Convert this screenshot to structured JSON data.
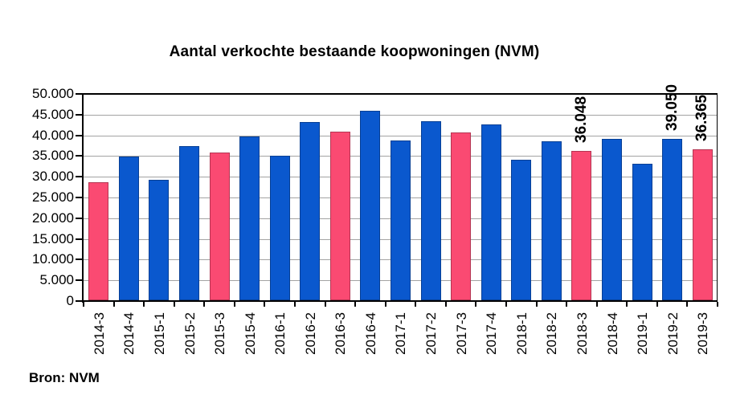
{
  "chart_data": {
    "type": "bar",
    "title": "Aantal verkochte bestaande koopwoningen (NVM)",
    "categories": [
      "2014-3",
      "2014-4",
      "2015-1",
      "2015-2",
      "2015-3",
      "2015-4",
      "2016-1",
      "2016-2",
      "2016-3",
      "2016-4",
      "2017-1",
      "2017-2",
      "2017-3",
      "2017-4",
      "2018-1",
      "2018-2",
      "2018-3",
      "2018-4",
      "2019-1",
      "2019-2",
      "2019-3"
    ],
    "values": [
      28400,
      34700,
      29000,
      37300,
      35600,
      39600,
      34900,
      43000,
      40700,
      45800,
      38500,
      43200,
      40600,
      42500,
      34000,
      38400,
      36048,
      39000,
      32900,
      39050,
      36365
    ],
    "point_labels": [
      "",
      "",
      "",
      "",
      "",
      "",
      "",
      "",
      "",
      "",
      "",
      "",
      "",
      "",
      "",
      "",
      "36.048",
      "",
      "",
      "39.050",
      "36.365"
    ],
    "highlighted_categories": [
      "2014-3",
      "2015-3",
      "2016-3",
      "2017-3",
      "2018-3",
      "2019-3"
    ],
    "colors": {
      "bar_default": "#0a58ce",
      "bar_highlight": "#fa4a72",
      "gridline": "#a3a3a3",
      "axis": "#000000"
    },
    "xlabel": "",
    "ylabel": "",
    "ylim": [
      0,
      50000
    ],
    "ytick_step": 5000,
    "ytick_labels": [
      "0",
      "5.000",
      "10.000",
      "15.000",
      "20.000",
      "25.000",
      "30.000",
      "35.000",
      "40.000",
      "45.000",
      "50.000"
    ],
    "grid": "horizontal",
    "legend": "none"
  },
  "footer": {
    "source": "Bron: NVM"
  }
}
